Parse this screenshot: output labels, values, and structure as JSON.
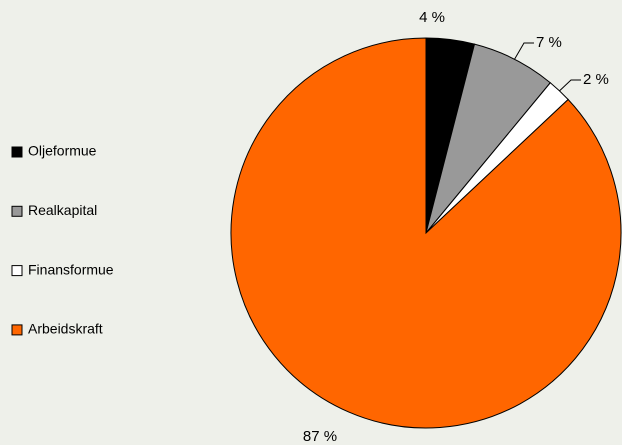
{
  "chart_data": {
    "type": "pie",
    "categories": [
      "Oljeformue",
      "Realkapital",
      "Finansformue",
      "Arbeidskraft"
    ],
    "values": [
      4,
      7,
      2,
      87
    ],
    "value_labels": [
      "4 %",
      "7 %",
      "2 %",
      "87 %"
    ],
    "colors": [
      "#000000",
      "#999999",
      "#ffffff",
      "#ff6600"
    ],
    "legend": "left"
  }
}
